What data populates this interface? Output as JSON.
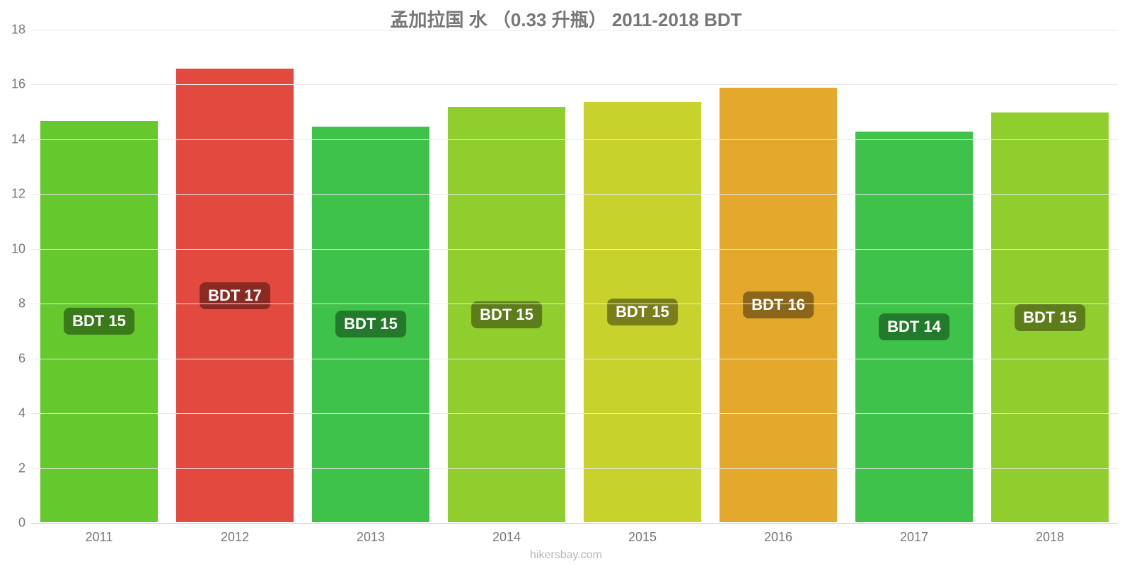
{
  "chart": {
    "type": "bar",
    "title": "孟加拉国 水 （0.33 升瓶） 2011-2018 BDT",
    "title_fontsize": 26,
    "title_color": "#777777",
    "background_color": "#ffffff",
    "grid_color": "#e9e9e9",
    "axis_line_color": "#c9c9c9",
    "tick_label_color": "#777777",
    "xtick_fontsize": 18,
    "ytick_fontsize": 18,
    "bar_label_fontsize": 22,
    "attribution_fontsize": 16,
    "attribution_color": "#b6b6b6",
    "bar_width_pct": 88,
    "ylim": [
      0,
      18
    ],
    "yticks": [
      0,
      2,
      4,
      6,
      8,
      10,
      12,
      14,
      16,
      18
    ],
    "categories": [
      "2011",
      "2012",
      "2013",
      "2014",
      "2015",
      "2016",
      "2017",
      "2018"
    ],
    "values": [
      14.7,
      16.6,
      14.5,
      15.2,
      15.4,
      15.9,
      14.3,
      15.0
    ],
    "value_labels": [
      "BDT 15",
      "BDT 17",
      "BDT 15",
      "BDT 15",
      "BDT 15",
      "BDT 16",
      "BDT 14",
      "BDT 15"
    ],
    "bar_colors": [
      "#65c92e",
      "#e24a3f",
      "#3fc24a",
      "#90ce2e",
      "#c8d22d",
      "#e4a92c",
      "#3fc24a",
      "#90ce2e"
    ],
    "label_bg_colors": [
      "#3a7a1a",
      "#8b2a22",
      "#247a2c",
      "#5d7d1a",
      "#7a7e1a",
      "#8a651a",
      "#247a2c",
      "#5d7d1a"
    ],
    "attribution": "hikersbay.com"
  }
}
